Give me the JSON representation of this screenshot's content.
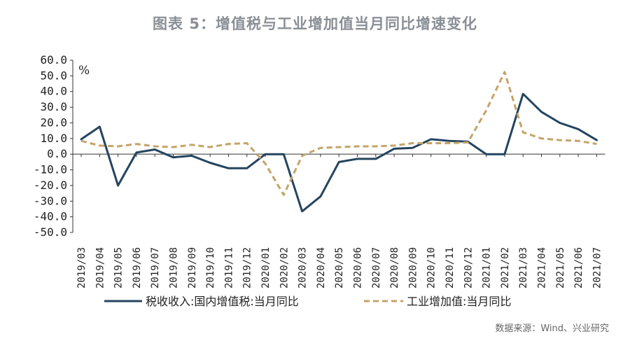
{
  "title": "图表 5：增值税与工业增加值当月同比增速变化",
  "source": "数据来源：Wind、兴业研究",
  "chart_data": {
    "type": "line",
    "title": "图表 5：增值税与工业增加值当月同比增速变化",
    "xlabel": "",
    "ylabel": "%",
    "ylim": [
      -50,
      60
    ],
    "yticks": [
      "60.0",
      "50.0",
      "40.0",
      "30.0",
      "20.0",
      "10.0",
      "0.0",
      "-10.0",
      "-20.0",
      "-30.0",
      "-40.0",
      "-50.0"
    ],
    "grid": false,
    "legend_position": "bottom",
    "categories": [
      "2019/03",
      "2019/04",
      "2019/05",
      "2019/06",
      "2019/07",
      "2019/08",
      "2019/09",
      "2019/10",
      "2019/11",
      "2019/12",
      "2020/01",
      "2020/02",
      "2020/03",
      "2020/04",
      "2020/05",
      "2020/06",
      "2020/07",
      "2020/08",
      "2020/09",
      "2020/10",
      "2020/11",
      "2020/12",
      "2021/01",
      "2021/02",
      "2021/03",
      "2021/04",
      "2021/05",
      "2021/06",
      "2021/07"
    ],
    "series": [
      {
        "name": "税收收入:国内增值税:当月同比",
        "color": "#24445f",
        "style": "solid",
        "values": [
          9.5,
          17.5,
          -20.0,
          1.0,
          3.0,
          -2.0,
          -1.0,
          -5.5,
          -9.0,
          -9.0,
          0.0,
          0.0,
          -36.5,
          -27.0,
          -5.0,
          -3.0,
          -3.0,
          3.5,
          4.0,
          9.5,
          8.5,
          8.0,
          0.0,
          0.0,
          38.5,
          27.0,
          20.0,
          16.0,
          9.0
        ]
      },
      {
        "name": "工业增加值:当月同比",
        "color": "#c4a468",
        "style": "dashed",
        "values": [
          8.5,
          5.5,
          5.0,
          6.5,
          5.0,
          4.5,
          6.0,
          4.5,
          6.5,
          7.0,
          -6.0,
          -26.0,
          -1.0,
          4.0,
          4.5,
          5.0,
          5.0,
          5.5,
          7.0,
          7.0,
          7.0,
          7.5,
          28.0,
          52.5,
          14.0,
          10.0,
          9.0,
          8.5,
          6.5
        ]
      }
    ]
  }
}
